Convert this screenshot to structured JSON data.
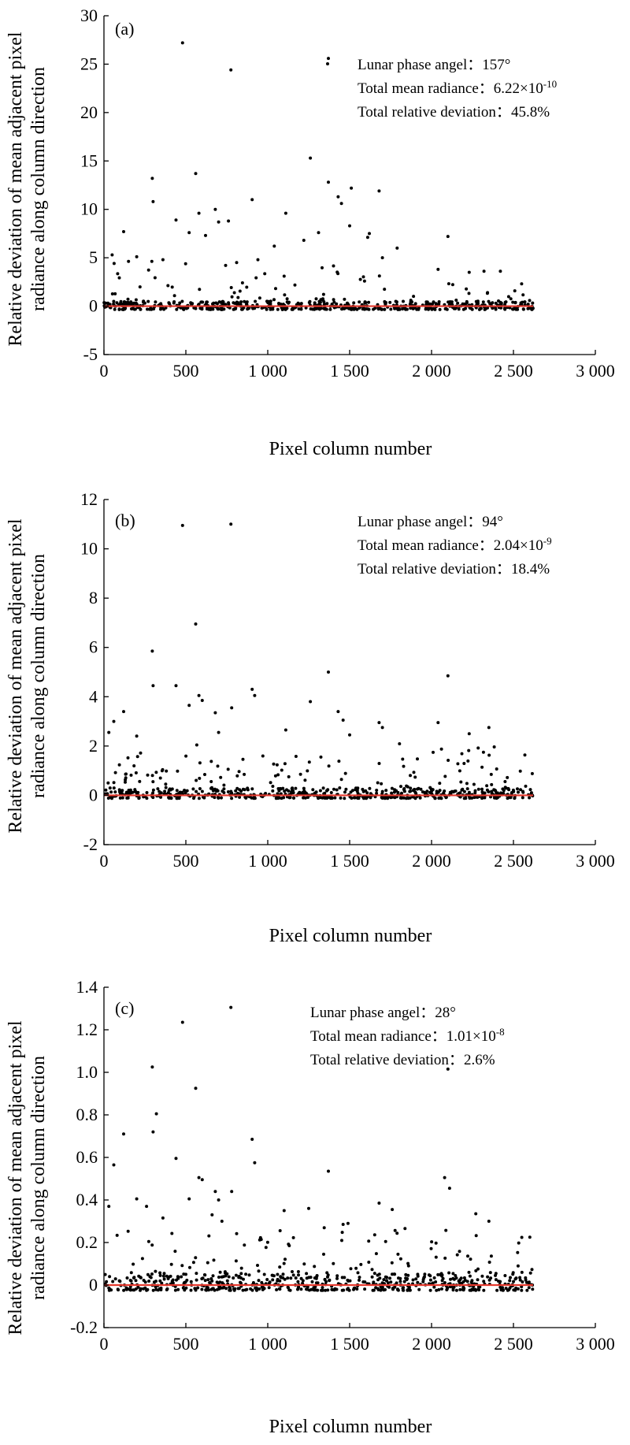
{
  "chart_data": [
    {
      "type": "scatter",
      "panel_label": "(a)",
      "xlabel": "Pixel column number",
      "ylabel_line1": "Relative deviation of mean adjacent pixel",
      "ylabel_line2": "radiance along column direction",
      "xlim": [
        0,
        3000
      ],
      "ylim": [
        -5,
        30
      ],
      "x_ticks": [
        0,
        500,
        1000,
        1500,
        2000,
        2500,
        3000
      ],
      "x_tick_labels": [
        "0",
        "500",
        "1 000",
        "1 500",
        "2 000",
        "2 500",
        "3 000"
      ],
      "y_ticks": [
        -5,
        0,
        5,
        10,
        15,
        20,
        25,
        30
      ],
      "y_tick_labels": [
        "-5",
        "0",
        "5",
        "10",
        "15",
        "20",
        "25",
        "30"
      ],
      "reference_line": {
        "y": 0,
        "x_range": [
          0,
          2620
        ],
        "color": "#e53a2f"
      },
      "annotations": {
        "phase_label": "Lunar phase angel：",
        "phase_value": "157°",
        "radiance_label": "Total mean radiance：",
        "radiance_value": "6.22×10",
        "radiance_exponent": "-10",
        "deviation_label": "Total relative deviation：",
        "deviation_value": "45.8%"
      },
      "highlight_points": [
        [
          480,
          27.2
        ],
        [
          775,
          24.4
        ],
        [
          1370,
          25.6
        ],
        [
          1260,
          15.3
        ],
        [
          560,
          13.7
        ],
        [
          295,
          13.2
        ],
        [
          1370,
          12.8
        ],
        [
          1510,
          12.2
        ],
        [
          1680,
          11.9
        ],
        [
          300,
          10.8
        ],
        [
          905,
          11.0
        ],
        [
          1430,
          11.3
        ],
        [
          1450,
          10.6
        ],
        [
          580,
          9.6
        ],
        [
          1110,
          9.6
        ],
        [
          680,
          10.0
        ],
        [
          440,
          8.9
        ],
        [
          700,
          8.7
        ],
        [
          1500,
          8.3
        ],
        [
          120,
          7.7
        ],
        [
          520,
          7.6
        ],
        [
          1310,
          7.6
        ],
        [
          2100,
          7.2
        ],
        [
          1610,
          7.1
        ],
        [
          1790,
          6.0
        ],
        [
          1040,
          6.2
        ],
        [
          50,
          5.3
        ],
        [
          200,
          5.1
        ],
        [
          360,
          4.8
        ],
        [
          810,
          4.5
        ],
        [
          2040,
          3.8
        ],
        [
          2230,
          3.5
        ],
        [
          2320,
          3.6
        ],
        [
          2420,
          3.6
        ],
        [
          2550,
          2.3
        ],
        [
          760,
          8.8
        ],
        [
          1620,
          7.5
        ],
        [
          1220,
          6.8
        ],
        [
          620,
          7.3
        ],
        [
          940,
          4.8
        ],
        [
          1100,
          3.1
        ],
        [
          1700,
          5.0
        ]
      ],
      "generated_points": {
        "count": 620,
        "seed": 11,
        "x_range": [
          0,
          2620
        ],
        "base_range": [
          -0.35,
          0.5
        ],
        "low_scatter_fraction": 0.22,
        "low_scatter_max": 2.6,
        "high_region_end": 1850,
        "high_region_boost": 1.8
      }
    },
    {
      "type": "scatter",
      "panel_label": "(b)",
      "xlabel": "Pixel column number",
      "ylabel_line1": "Relative deviation of mean adjacent pixel",
      "ylabel_line2": "radiance along column direction",
      "xlim": [
        0,
        3000
      ],
      "ylim": [
        -2,
        12
      ],
      "x_ticks": [
        0,
        500,
        1000,
        1500,
        2000,
        2500,
        3000
      ],
      "x_tick_labels": [
        "0",
        "500",
        "1 000",
        "1 500",
        "2 000",
        "2 500",
        "3 000"
      ],
      "y_ticks": [
        -2,
        0,
        2,
        4,
        6,
        8,
        10,
        12
      ],
      "y_tick_labels": [
        "-2",
        "0",
        "2",
        "4",
        "6",
        "8",
        "10",
        "12"
      ],
      "reference_line": {
        "y": 0,
        "x_range": [
          0,
          2620
        ],
        "color": "#e53a2f"
      },
      "annotations": {
        "phase_label": "Lunar phase angel：",
        "phase_value": "94°",
        "radiance_label": "Total mean radiance：",
        "radiance_value": "2.04×10",
        "radiance_exponent": "-9",
        "deviation_label": "Total relative deviation：",
        "deviation_value": "18.4%"
      },
      "highlight_points": [
        [
          480,
          10.95
        ],
        [
          775,
          11.0
        ],
        [
          560,
          6.95
        ],
        [
          295,
          5.85
        ],
        [
          1370,
          5.0
        ],
        [
          2100,
          4.85
        ],
        [
          300,
          4.45
        ],
        [
          440,
          4.45
        ],
        [
          905,
          4.3
        ],
        [
          920,
          4.05
        ],
        [
          580,
          4.05
        ],
        [
          600,
          3.85
        ],
        [
          1260,
          3.8
        ],
        [
          520,
          3.65
        ],
        [
          780,
          3.55
        ],
        [
          120,
          3.4
        ],
        [
          1430,
          3.4
        ],
        [
          680,
          3.35
        ],
        [
          1460,
          3.05
        ],
        [
          60,
          3.0
        ],
        [
          1680,
          2.95
        ],
        [
          2040,
          2.95
        ],
        [
          2350,
          2.75
        ],
        [
          1700,
          2.75
        ],
        [
          1110,
          2.65
        ],
        [
          700,
          2.55
        ],
        [
          30,
          2.55
        ],
        [
          200,
          2.4
        ],
        [
          2230,
          2.5
        ],
        [
          1500,
          2.45
        ]
      ],
      "generated_points": {
        "count": 620,
        "seed": 23,
        "x_range": [
          0,
          2620
        ],
        "base_range": [
          -0.12,
          0.3
        ],
        "low_scatter_fraction": 0.24,
        "low_scatter_max": 2.1,
        "high_region_end": 2620,
        "high_region_boost": 1.0
      }
    },
    {
      "type": "scatter",
      "panel_label": "(c)",
      "xlabel": "Pixel column number",
      "ylabel_line1": "Relative deviation of mean adjacent pixel",
      "ylabel_line2": "radiance along column direction",
      "xlim": [
        0,
        3000
      ],
      "ylim": [
        -0.2,
        1.4
      ],
      "x_ticks": [
        0,
        500,
        1000,
        1500,
        2000,
        2500,
        3000
      ],
      "x_tick_labels": [
        "0",
        "500",
        "1 000",
        "1 500",
        "2 000",
        "2 500",
        "3 000"
      ],
      "y_ticks": [
        -0.2,
        0,
        0.2,
        0.4,
        0.6,
        0.8,
        1.0,
        1.2,
        1.4
      ],
      "y_tick_labels": [
        "-0.2",
        "0",
        "0.2",
        "0.4",
        "0.6",
        "0.8",
        "1.0",
        "1.2",
        "1.4"
      ],
      "reference_line": {
        "y": 0,
        "x_range": [
          0,
          2620
        ],
        "color": "#e53a2f"
      },
      "annotations": {
        "phase_label": "Lunar phase angel：",
        "phase_value": "28°",
        "radiance_label": "Total mean radiance：",
        "radiance_value": "1.01×10",
        "radiance_exponent": "-8",
        "deviation_label": "Total relative deviation：",
        "deviation_value": "2.6%"
      },
      "highlight_points": [
        [
          775,
          1.305
        ],
        [
          480,
          1.235
        ],
        [
          295,
          1.025
        ],
        [
          2100,
          1.015
        ],
        [
          560,
          0.925
        ],
        [
          320,
          0.805
        ],
        [
          300,
          0.72
        ],
        [
          120,
          0.71
        ],
        [
          905,
          0.685
        ],
        [
          440,
          0.595
        ],
        [
          920,
          0.575
        ],
        [
          60,
          0.565
        ],
        [
          1370,
          0.535
        ],
        [
          2080,
          0.505
        ],
        [
          580,
          0.505
        ],
        [
          600,
          0.495
        ],
        [
          2110,
          0.455
        ],
        [
          680,
          0.44
        ],
        [
          780,
          0.44
        ],
        [
          700,
          0.4
        ],
        [
          200,
          0.405
        ],
        [
          520,
          0.405
        ],
        [
          1680,
          0.385
        ],
        [
          30,
          0.37
        ],
        [
          260,
          0.37
        ],
        [
          1250,
          0.36
        ],
        [
          1760,
          0.355
        ],
        [
          2270,
          0.335
        ],
        [
          360,
          0.315
        ],
        [
          1490,
          0.29
        ],
        [
          1460,
          0.285
        ],
        [
          2350,
          0.3
        ],
        [
          1100,
          0.35
        ],
        [
          660,
          0.33
        ],
        [
          720,
          0.3
        ],
        [
          2600,
          0.225
        ]
      ],
      "generated_points": {
        "count": 640,
        "seed": 37,
        "x_range": [
          0,
          2620
        ],
        "base_range": [
          -0.025,
          0.06
        ],
        "low_scatter_fraction": 0.26,
        "low_scatter_max": 0.27,
        "high_region_end": 2620,
        "high_region_boost": 1.0
      }
    }
  ]
}
